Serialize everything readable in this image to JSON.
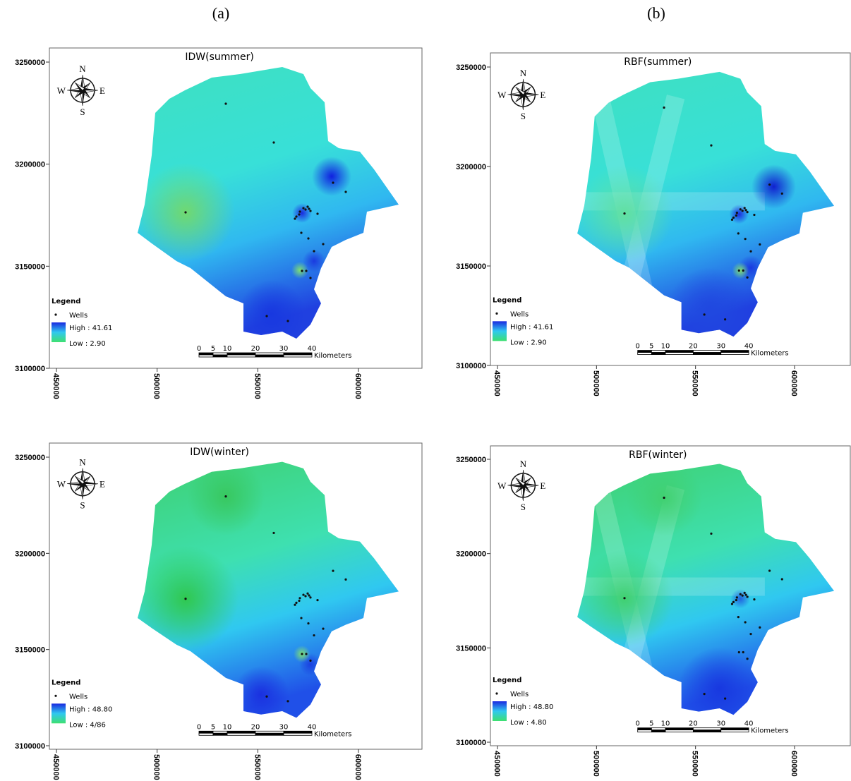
{
  "labels": [
    "(a)",
    "(b)"
  ],
  "compass": {
    "n": "N",
    "e": "E",
    "s": "S",
    "w": "W"
  },
  "legend": {
    "title": "Legend",
    "wells": "Wells"
  },
  "scale_bar": {
    "ticks": [
      0,
      5,
      10,
      20,
      30,
      40
    ],
    "unit": "Kilometers"
  },
  "panels": [
    {
      "title": "IDW(summer)",
      "high": "High : 41.61",
      "low": "Low : 2.90",
      "xticks": [
        450000,
        500000,
        550000,
        600000
      ],
      "yticks": [
        3250000,
        3200000,
        3150000,
        3100000
      ]
    },
    {
      "title": "RBF(summer)",
      "high": "High : 41.61",
      "low": "Low : 2.90",
      "xticks": [
        450000,
        500000,
        550000,
        600000
      ],
      "yticks": [
        3250000,
        3200000,
        3150000,
        3100000
      ]
    },
    {
      "title": "IDW(winter)",
      "high": "High : 48.80",
      "low": "Low : 4/86",
      "xticks": [
        450000,
        500000,
        550000,
        600000
      ],
      "yticks": [
        3250000,
        3200000,
        3150000,
        3100000
      ]
    },
    {
      "title": "RBF(winter)",
      "high": "High : 48.80",
      "low": "Low : 4.80",
      "xticks": [
        450000,
        500000,
        550000,
        600000
      ],
      "yticks": [
        3250000,
        3200000,
        3150000,
        3100000
      ]
    }
  ]
}
